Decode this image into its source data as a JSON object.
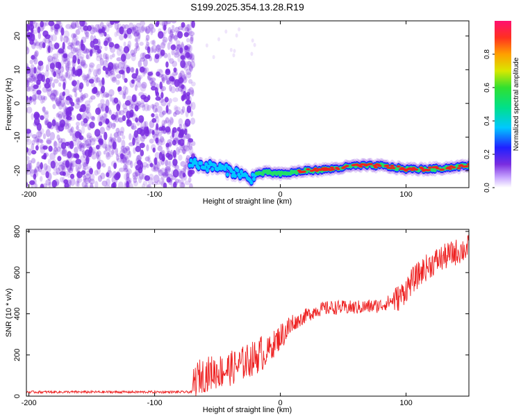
{
  "title": "S199.2025.354.13.28.R19",
  "colors": {
    "snr_line": "#ee2222",
    "frame": "#000000",
    "speckle": "#7a2de0",
    "ridge_outer": "#2020ff",
    "ridge_mid": "#22dd66",
    "ridge_core": "#ee2222"
  },
  "chart_data": [
    {
      "type": "heatmap",
      "name": "spectrogram",
      "xlabel": "Height of straight line (km)",
      "ylabel": "Frequency (Hz)",
      "xlim": [
        -202,
        150
      ],
      "ylim": [
        -25,
        24.5
      ],
      "xticks": [
        -200,
        -100,
        0,
        100
      ],
      "yticks": [
        -20,
        -10,
        0,
        10,
        20
      ],
      "colorbar": {
        "label": "Normalized spectral amplitude",
        "range": [
          0,
          1
        ],
        "ticks": [
          0.0,
          0.2,
          0.4,
          0.6,
          0.8
        ],
        "tick_labels": [
          "0.0",
          "0.2",
          "0.4",
          "0.6",
          "0.8"
        ]
      },
      "noise_region_x": [
        -200,
        -72
      ],
      "ridge": {
        "x": [
          -72,
          -60,
          -50,
          -40,
          -30,
          -25,
          -20,
          -10,
          0,
          20,
          40,
          60,
          80,
          100,
          120,
          150
        ],
        "freq": [
          -17.5,
          -18.5,
          -19,
          -20,
          -21,
          -23,
          -21,
          -20.5,
          -21,
          -20,
          -19.5,
          -18.5,
          -18.5,
          -19.5,
          -19.5,
          -18.5
        ],
        "amp": [
          0.35,
          0.4,
          0.4,
          0.45,
          0.45,
          0.5,
          0.55,
          0.6,
          0.65,
          0.8,
          0.85,
          0.9,
          0.9,
          0.85,
          0.85,
          0.9
        ]
      }
    },
    {
      "type": "line",
      "name": "snr",
      "xlabel": "Height of straight line (km)",
      "ylabel": "SNR (10 * v/v)",
      "xlim": [
        -202,
        150
      ],
      "ylim": [
        0,
        810
      ],
      "xticks": [
        -200,
        -100,
        0,
        100
      ],
      "yticks": [
        0,
        200,
        400,
        600,
        800
      ],
      "trend": {
        "x": [
          -202,
          -70,
          -65,
          -55,
          -45,
          -35,
          -25,
          -18,
          -10,
          0,
          10,
          20,
          30,
          40,
          60,
          80,
          95,
          105,
          115,
          125,
          140,
          150
        ],
        "y": [
          20,
          20,
          60,
          80,
          90,
          110,
          140,
          160,
          220,
          290,
          350,
          390,
          420,
          430,
          430,
          440,
          480,
          560,
          620,
          660,
          700,
          720
        ]
      }
    }
  ]
}
